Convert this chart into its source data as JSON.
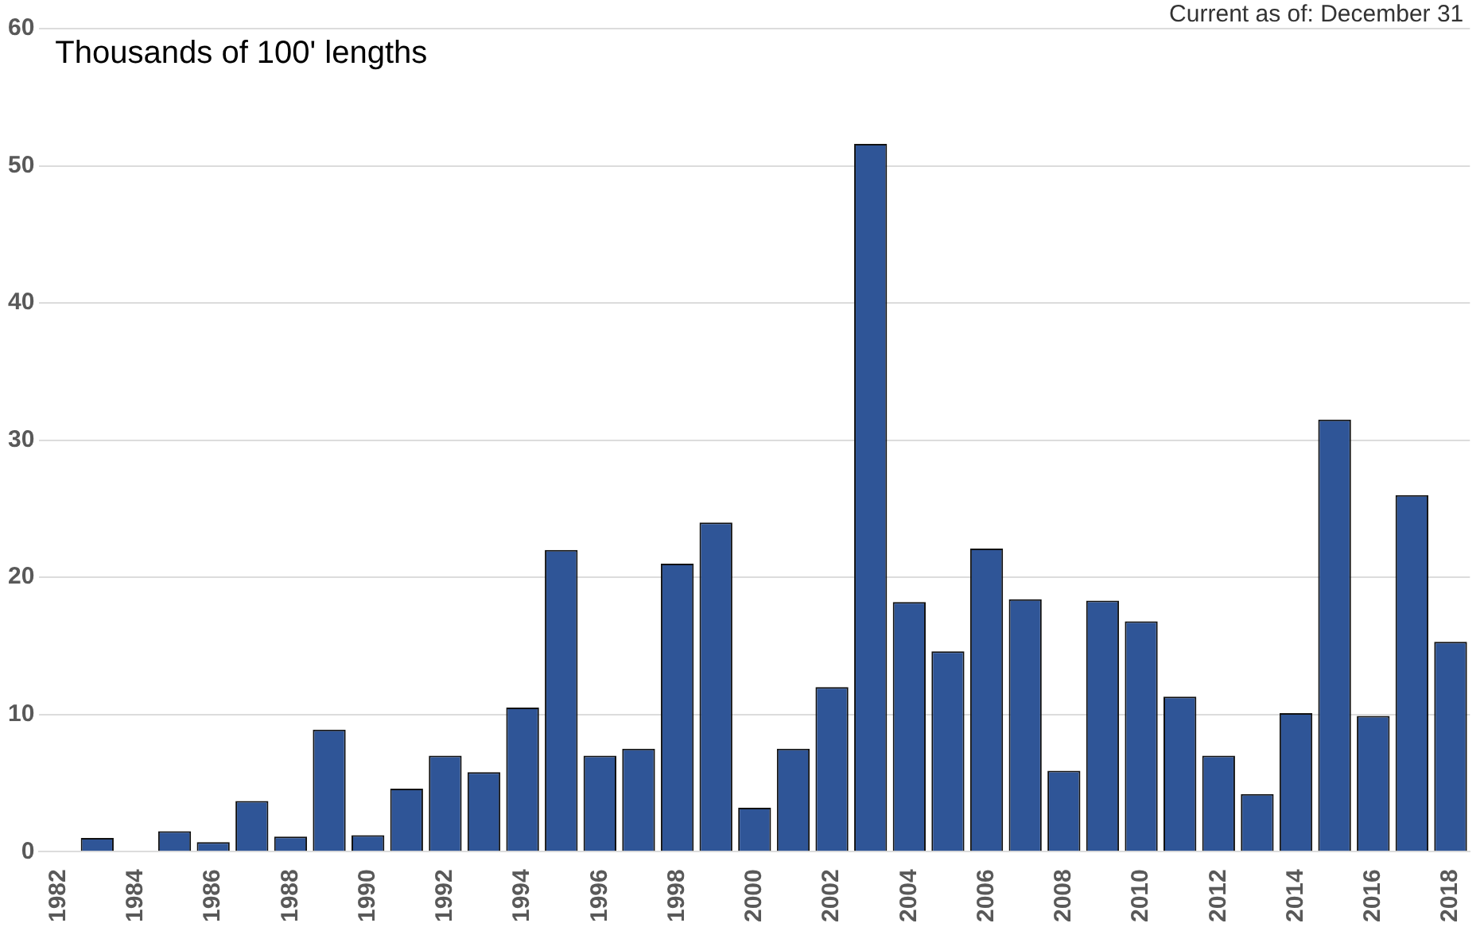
{
  "chart_data": {
    "type": "bar",
    "ylabel": "Thousands of 100' lengths",
    "annotations": [
      "Current as of: December 31"
    ],
    "categories": [
      "1982",
      null,
      "1984",
      null,
      "1986",
      null,
      "1988",
      null,
      "1990",
      null,
      "1992",
      null,
      "1994",
      null,
      "1996",
      null,
      "1998",
      null,
      "2000",
      null,
      "2002",
      null,
      "2004",
      null,
      "2006",
      null,
      "2008",
      null,
      "2010",
      null,
      "2012",
      null,
      "2014",
      null,
      "2016",
      null,
      "2018"
    ],
    "values": [
      0,
      1.0,
      0,
      1.5,
      0.7,
      3.7,
      1.1,
      8.9,
      1.2,
      4.6,
      7.0,
      5.8,
      10.5,
      22.0,
      7.0,
      7.5,
      21.0,
      24.0,
      3.2,
      7.5,
      12.0,
      51.6,
      18.2,
      14.6,
      22.1,
      18.4,
      5.9,
      18.3,
      16.8,
      11.3,
      7.0,
      4.2,
      10.1,
      31.5,
      9.9,
      26.0,
      15.3
    ],
    "color": "#2f5597",
    "ylim": [
      0,
      60
    ],
    "yticks": [
      0,
      10,
      20,
      30,
      40,
      50,
      60
    ],
    "grid": "y",
    "legend": false
  }
}
